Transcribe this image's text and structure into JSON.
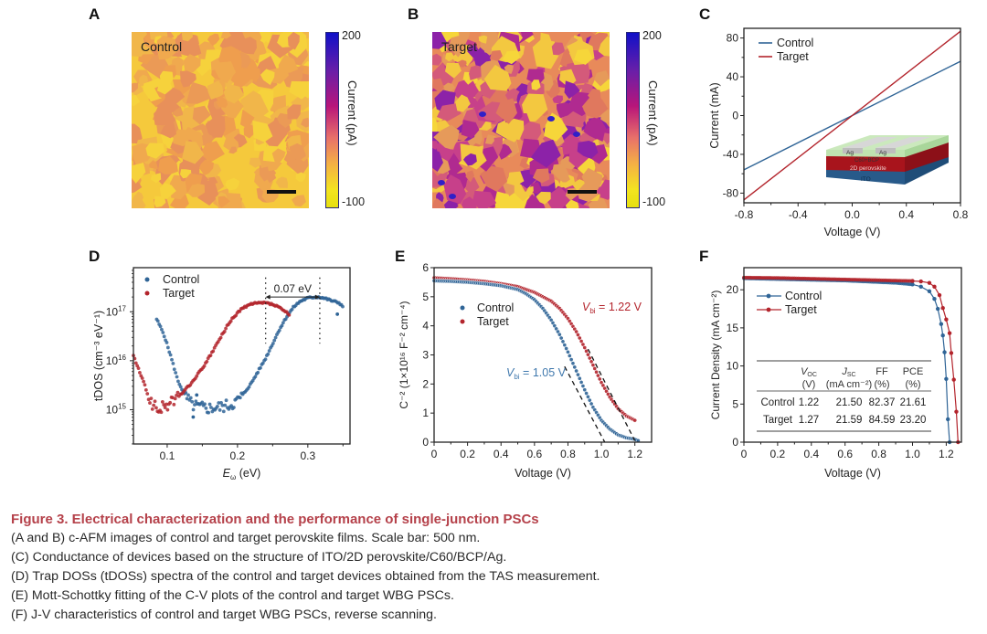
{
  "panels": {
    "A": {
      "letter": "A",
      "label": "Control",
      "colorbar": {
        "max": "200",
        "min": "-100",
        "label": "Current (pA)"
      }
    },
    "B": {
      "letter": "B",
      "label": "Target",
      "colorbar": {
        "max": "200",
        "min": "-100",
        "label": "Current (pA)"
      }
    },
    "C": {
      "letter": "C"
    },
    "D": {
      "letter": "D"
    },
    "E": {
      "letter": "E"
    },
    "F": {
      "letter": "F"
    }
  },
  "colors": {
    "control": "#2f6496",
    "target": "#b3242c",
    "caption_title": "#b5414a"
  },
  "chart_data": [
    {
      "id": "A",
      "type": "heatmap",
      "title": "Control",
      "colorbar": {
        "min": -100,
        "max": 200,
        "label": "Current (pA)",
        "colormap": "plasma-like (yellow→orange→magenta→blue)"
      },
      "scale_bar": "500 nm"
    },
    {
      "id": "B",
      "type": "heatmap",
      "title": "Target",
      "colorbar": {
        "min": -100,
        "max": 200,
        "label": "Current (pA)",
        "colormap": "plasma-like (yellow→orange→magenta→blue)"
      },
      "scale_bar": "500 nm"
    },
    {
      "id": "C",
      "type": "line",
      "xlabel": "Voltage (V)",
      "ylabel": "Current (mA)",
      "xlim": [
        -0.8,
        0.8
      ],
      "ylim": [
        -90,
        90
      ],
      "xticks": [
        "-0.8",
        "-0.4",
        "0.0",
        "0.4",
        "0.8"
      ],
      "yticks": [
        "-80",
        "-40",
        "0",
        "40",
        "80"
      ],
      "legend": "top-left",
      "series": [
        {
          "name": "Control",
          "x": [
            -0.8,
            0.8
          ],
          "y": [
            -56,
            56
          ]
        },
        {
          "name": "Target",
          "x": [
            -0.8,
            0.8
          ],
          "y": [
            -87,
            87
          ]
        }
      ],
      "inset": {
        "layers": [
          "Ag",
          "Ag",
          "C60+BCP",
          "2D perovskite",
          "ITO"
        ]
      }
    },
    {
      "id": "D",
      "type": "scatter",
      "xlabel": "Eω (eV)",
      "ylabel": "tDOS (cm-3 eV-1)",
      "yscale": "log",
      "xlim": [
        0.052,
        0.36
      ],
      "ylim_log10": [
        14.3,
        17.9
      ],
      "xticks": [
        "0.1",
        "0.2",
        "0.3"
      ],
      "yticks": [
        "10^15",
        "10^16",
        "10^17"
      ],
      "legend": "top-left",
      "annotation": {
        "text": "0.07 eV",
        "from_x": 0.24,
        "to_x": 0.317
      },
      "series": [
        {
          "name": "Control",
          "x": [
            0.085,
            0.095,
            0.105,
            0.115,
            0.125,
            0.135,
            0.145,
            0.16,
            0.175,
            0.19,
            0.2,
            0.21,
            0.22,
            0.23,
            0.24,
            0.25,
            0.26,
            0.27,
            0.28,
            0.29,
            0.3,
            0.31,
            0.317,
            0.325,
            0.335,
            0.345,
            0.35
          ],
          "log10_y": [
            16.85,
            16.55,
            16.1,
            15.6,
            15.3,
            15.1,
            15.05,
            15.03,
            15.05,
            15.1,
            15.18,
            15.35,
            15.55,
            15.8,
            16.05,
            16.35,
            16.65,
            16.9,
            17.1,
            17.22,
            17.28,
            17.3,
            17.3,
            17.27,
            17.22,
            17.18,
            17.1
          ]
        },
        {
          "name": "Target",
          "x": [
            0.052,
            0.06,
            0.068,
            0.075,
            0.085,
            0.095,
            0.105,
            0.115,
            0.125,
            0.135,
            0.145,
            0.155,
            0.165,
            0.175,
            0.185,
            0.195,
            0.205,
            0.215,
            0.225,
            0.235,
            0.24,
            0.25,
            0.26,
            0.27,
            0.275
          ],
          "log10_y": [
            16.1,
            15.8,
            15.5,
            15.2,
            15.0,
            15.05,
            15.15,
            15.25,
            15.4,
            15.55,
            15.75,
            15.95,
            16.2,
            16.45,
            16.7,
            16.9,
            17.05,
            17.13,
            17.17,
            17.18,
            17.18,
            17.15,
            17.08,
            16.98,
            16.9
          ]
        }
      ]
    },
    {
      "id": "E",
      "type": "scatter",
      "xlabel": "Voltage (V)",
      "ylabel": "C-2 (1×10^16 F-2 cm-4)",
      "xlim": [
        0,
        1.3
      ],
      "ylim": [
        0,
        6
      ],
      "xticks": [
        "0",
        "0.2",
        "0.4",
        "0.6",
        "0.8",
        "1.0",
        "1.2"
      ],
      "yticks": [
        "0",
        "1",
        "2",
        "3",
        "4",
        "5",
        "6"
      ],
      "legend": "top-left",
      "annotations": [
        {
          "text": "Vbi = 1.22 V",
          "series": "Target"
        },
        {
          "text": "Vbi = 1.05 V",
          "series": "Control"
        }
      ],
      "fits": [
        {
          "series": "Control",
          "x": [
            0.78,
            1.02
          ],
          "y": [
            2.6,
            0.0
          ]
        },
        {
          "series": "Target",
          "x": [
            0.92,
            1.2
          ],
          "y": [
            3.2,
            0.05
          ]
        }
      ],
      "series": [
        {
          "name": "Control",
          "x": [
            0,
            0.1,
            0.2,
            0.3,
            0.4,
            0.5,
            0.55,
            0.6,
            0.65,
            0.7,
            0.75,
            0.8,
            0.85,
            0.9,
            0.95,
            1.0,
            1.05,
            1.1,
            1.15,
            1.2,
            1.22
          ],
          "y": [
            5.55,
            5.53,
            5.5,
            5.45,
            5.38,
            5.25,
            5.1,
            4.9,
            4.6,
            4.2,
            3.7,
            3.1,
            2.45,
            1.8,
            1.2,
            0.75,
            0.45,
            0.25,
            0.15,
            0.1,
            0.05
          ]
        },
        {
          "name": "Target",
          "x": [
            0,
            0.1,
            0.2,
            0.3,
            0.4,
            0.5,
            0.6,
            0.7,
            0.75,
            0.8,
            0.85,
            0.9,
            0.95,
            1.0,
            1.05,
            1.1,
            1.15,
            1.2
          ],
          "y": [
            5.65,
            5.62,
            5.58,
            5.53,
            5.45,
            5.35,
            5.15,
            4.85,
            4.6,
            4.25,
            3.8,
            3.25,
            2.65,
            2.05,
            1.55,
            1.15,
            0.9,
            0.75
          ]
        }
      ]
    },
    {
      "id": "F",
      "type": "line",
      "xlabel": "Voltage (V)",
      "ylabel": "Current Density (mA cm-2)",
      "xlim": [
        0,
        1.29
      ],
      "ylim": [
        0,
        22.9
      ],
      "xticks": [
        "0",
        "0.2",
        "0.4",
        "0.6",
        "0.8",
        "1.0",
        "1.2"
      ],
      "yticks": [
        "0",
        "5",
        "10",
        "15",
        "20"
      ],
      "legend": "top-left",
      "series": [
        {
          "name": "Control",
          "x": [
            0,
            0.2,
            0.4,
            0.6,
            0.8,
            0.9,
            1.0,
            1.05,
            1.1,
            1.13,
            1.15,
            1.17,
            1.18,
            1.19,
            1.2,
            1.21,
            1.22
          ],
          "y": [
            21.5,
            21.4,
            21.3,
            21.2,
            21.0,
            20.9,
            20.7,
            20.4,
            19.8,
            18.8,
            17.5,
            15.5,
            14.0,
            11.8,
            8.3,
            3.0,
            0.0
          ]
        },
        {
          "name": "Target",
          "x": [
            0,
            0.2,
            0.4,
            0.6,
            0.8,
            0.9,
            1.0,
            1.05,
            1.1,
            1.13,
            1.16,
            1.18,
            1.2,
            1.22,
            1.23,
            1.245,
            1.26,
            1.27
          ],
          "y": [
            21.6,
            21.55,
            21.45,
            21.35,
            21.25,
            21.2,
            21.15,
            21.1,
            20.9,
            20.4,
            19.3,
            17.6,
            16.1,
            14.3,
            11.7,
            8.2,
            4.0,
            0.0
          ]
        }
      ],
      "table": {
        "headers": [
          "",
          "VOC (V)",
          "JSC (mA cm-2)",
          "FF (%)",
          "PCE (%)"
        ],
        "rows": [
          [
            "Control",
            "1.22",
            "21.50",
            "82.37",
            "21.61"
          ],
          [
            "Target",
            "1.27",
            "21.59",
            "84.59",
            "23.20"
          ]
        ]
      }
    }
  ],
  "caption": {
    "title": "Figure 3.  Electrical characterization and the performance of single-junction PSCs",
    "lines": [
      "(A and B) c-AFM images of control and target perovskite films. Scale bar: 500 nm.",
      "(C) Conductance of devices based on the structure of ITO/2D perovskite/C60/BCP/Ag.",
      "(D) Trap DOSs (tDOSs) spectra of the control and target devices obtained from the TAS measurement.",
      "(E) Mott-Schottky fitting of the C-V plots of the control and target WBG PSCs.",
      "(F) J-V characteristics of control and target WBG PSCs, reverse scanning."
    ]
  }
}
